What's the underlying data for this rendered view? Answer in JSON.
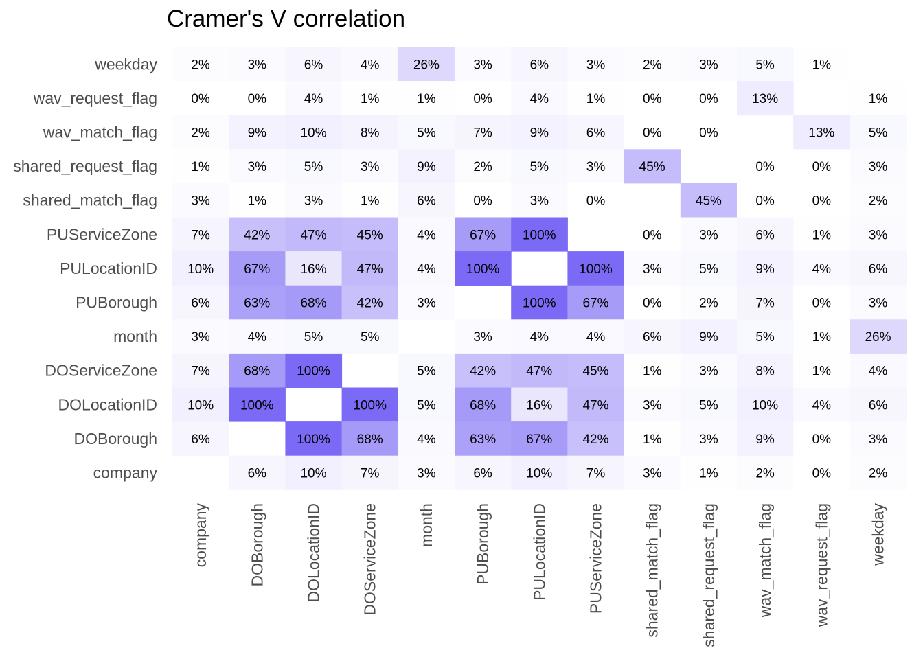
{
  "chart_data": {
    "type": "heatmap",
    "title": "Cramer's V correlation",
    "value_format": "percent",
    "columns": [
      "company",
      "DOBorough",
      "DOLocationID",
      "DOServiceZone",
      "month",
      "PUBorough",
      "PULocationID",
      "PUServiceZone",
      "shared_match_flag",
      "shared_request_flag",
      "wav_match_flag",
      "wav_request_flag",
      "weekday"
    ],
    "rows": [
      "weekday",
      "wav_request_flag",
      "wav_match_flag",
      "shared_request_flag",
      "shared_match_flag",
      "PUServiceZone",
      "PULocationID",
      "PUBorough",
      "month",
      "DOServiceZone",
      "DOLocationID",
      "DOBorough",
      "company"
    ],
    "values": [
      [
        2,
        3,
        6,
        4,
        26,
        3,
        6,
        3,
        2,
        3,
        5,
        1,
        null
      ],
      [
        0,
        0,
        4,
        1,
        1,
        0,
        4,
        1,
        0,
        0,
        13,
        null,
        1
      ],
      [
        2,
        9,
        10,
        8,
        5,
        7,
        9,
        6,
        0,
        0,
        null,
        13,
        5
      ],
      [
        1,
        3,
        5,
        3,
        9,
        2,
        5,
        3,
        45,
        null,
        0,
        0,
        3
      ],
      [
        3,
        1,
        3,
        1,
        6,
        0,
        3,
        0,
        null,
        45,
        0,
        0,
        2
      ],
      [
        7,
        42,
        47,
        45,
        4,
        67,
        100,
        null,
        0,
        3,
        6,
        1,
        3
      ],
      [
        10,
        67,
        16,
        47,
        4,
        100,
        null,
        100,
        3,
        5,
        9,
        4,
        6
      ],
      [
        6,
        63,
        68,
        42,
        3,
        null,
        100,
        67,
        0,
        2,
        7,
        0,
        3
      ],
      [
        3,
        4,
        5,
        5,
        null,
        3,
        4,
        4,
        6,
        9,
        5,
        1,
        26
      ],
      [
        7,
        68,
        100,
        null,
        5,
        42,
        47,
        45,
        1,
        3,
        8,
        1,
        4
      ],
      [
        10,
        100,
        null,
        100,
        5,
        68,
        16,
        47,
        3,
        5,
        10,
        4,
        6
      ],
      [
        6,
        null,
        100,
        68,
        4,
        63,
        67,
        42,
        1,
        3,
        9,
        0,
        3
      ],
      [
        null,
        6,
        10,
        7,
        3,
        6,
        10,
        7,
        3,
        1,
        2,
        0,
        2
      ]
    ],
    "color_low": "#ffffff",
    "color_high": "#7b6af5",
    "legend": "none",
    "grid": false
  }
}
